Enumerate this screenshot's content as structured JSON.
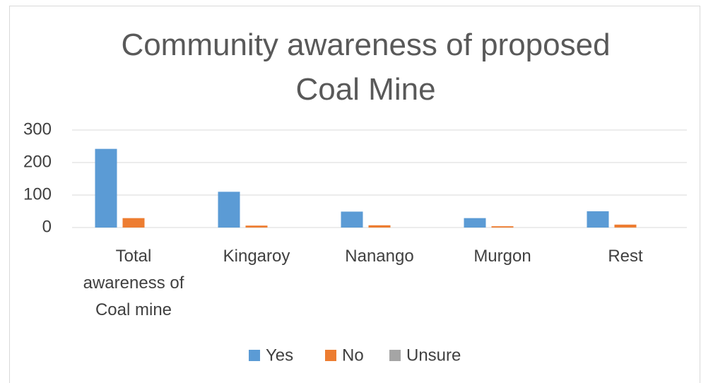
{
  "chart_data": {
    "type": "bar",
    "title": "Community awareness of proposed Coal Mine",
    "categories": [
      "Total awareness of Coal mine",
      "Kingaroy",
      "Nanango",
      "Murgon",
      "Rest"
    ],
    "series": [
      {
        "name": "Yes",
        "color": "#5b9bd5",
        "values": [
          242,
          110,
          49,
          29,
          50
        ]
      },
      {
        "name": "No",
        "color": "#ed7d31",
        "values": [
          29,
          6,
          7,
          4,
          9
        ]
      },
      {
        "name": "Unsure",
        "color": "#a5a5a5",
        "values": [
          0,
          0,
          0,
          0,
          0
        ]
      }
    ],
    "ylim": [
      0,
      300
    ],
    "yticks": [
      0,
      100,
      200,
      300
    ],
    "grid": true,
    "legend": "bottom"
  }
}
